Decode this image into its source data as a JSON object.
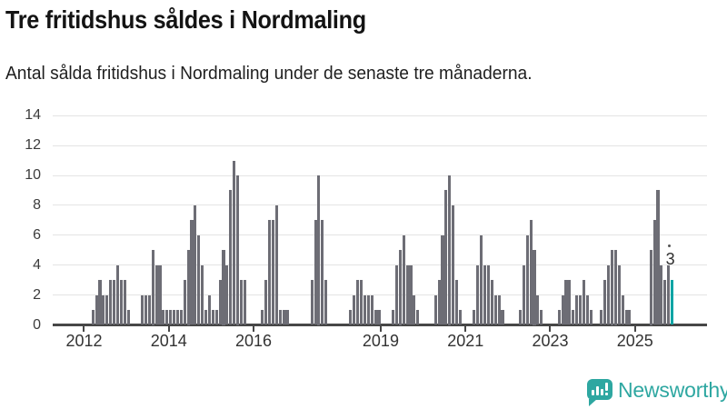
{
  "branding": {
    "name": "Newsworthy",
    "logo_icon": "bar-chart-speech-bubble",
    "color": "#2ea7a1"
  },
  "colors": {
    "bar": "#6d6d75",
    "highlight": "#00a4a4",
    "grid": "#e4e4e4",
    "axis_line": "#474747",
    "axis_text": "#3c3c3c",
    "title_text": "#141414"
  },
  "chart_data": {
    "type": "bar",
    "title": "Tre fritidshus såldes i Nordmaling",
    "subtitle": "Antal sålda fritidshus i Nordmaling under de senaste tre månaderna.",
    "xlabel": "",
    "ylabel": "",
    "ylim": [
      0,
      14
    ],
    "y_ticks": [
      0,
      2,
      4,
      6,
      8,
      10,
      12,
      14
    ],
    "x_tick_years": [
      2012,
      2014,
      2016,
      2019,
      2021,
      2023,
      2025
    ],
    "x_domain_start": "2011-04",
    "x_domain_end": "2026-08",
    "grid": true,
    "legend": "none",
    "unit": "antal sålda fritidshus per 3-månadersperiod",
    "series": [
      [
        "2012-03",
        1
      ],
      [
        "2012-04",
        2
      ],
      [
        "2012-05",
        3
      ],
      [
        "2012-06",
        2
      ],
      [
        "2012-07",
        2
      ],
      [
        "2012-08",
        3
      ],
      [
        "2012-09",
        3
      ],
      [
        "2012-10",
        4
      ],
      [
        "2012-11",
        3
      ],
      [
        "2012-12",
        3
      ],
      [
        "2013-01",
        1
      ],
      [
        "2013-05",
        2
      ],
      [
        "2013-06",
        2
      ],
      [
        "2013-07",
        2
      ],
      [
        "2013-08",
        5
      ],
      [
        "2013-09",
        4
      ],
      [
        "2013-10",
        4
      ],
      [
        "2013-11",
        1
      ],
      [
        "2013-12",
        1
      ],
      [
        "2014-01",
        1
      ],
      [
        "2014-02",
        1
      ],
      [
        "2014-03",
        1
      ],
      [
        "2014-04",
        1
      ],
      [
        "2014-05",
        3
      ],
      [
        "2014-06",
        5
      ],
      [
        "2014-07",
        7
      ],
      [
        "2014-08",
        8
      ],
      [
        "2014-09",
        6
      ],
      [
        "2014-10",
        4
      ],
      [
        "2014-11",
        1
      ],
      [
        "2014-12",
        2
      ],
      [
        "2015-01",
        1
      ],
      [
        "2015-02",
        1
      ],
      [
        "2015-03",
        3
      ],
      [
        "2015-04",
        5
      ],
      [
        "2015-05",
        4
      ],
      [
        "2015-06",
        9
      ],
      [
        "2015-07",
        11
      ],
      [
        "2015-08",
        10
      ],
      [
        "2015-09",
        3
      ],
      [
        "2015-10",
        3
      ],
      [
        "2016-03",
        1
      ],
      [
        "2016-04",
        3
      ],
      [
        "2016-05",
        7
      ],
      [
        "2016-06",
        7
      ],
      [
        "2016-07",
        8
      ],
      [
        "2016-08",
        1
      ],
      [
        "2016-09",
        1
      ],
      [
        "2016-10",
        1
      ],
      [
        "2017-05",
        3
      ],
      [
        "2017-06",
        7
      ],
      [
        "2017-07",
        10
      ],
      [
        "2017-08",
        7
      ],
      [
        "2017-09",
        3
      ],
      [
        "2018-04",
        1
      ],
      [
        "2018-05",
        2
      ],
      [
        "2018-06",
        3
      ],
      [
        "2018-07",
        3
      ],
      [
        "2018-08",
        2
      ],
      [
        "2018-09",
        2
      ],
      [
        "2018-10",
        2
      ],
      [
        "2018-11",
        1
      ],
      [
        "2018-12",
        1
      ],
      [
        "2019-04",
        1
      ],
      [
        "2019-05",
        4
      ],
      [
        "2019-06",
        5
      ],
      [
        "2019-07",
        6
      ],
      [
        "2019-08",
        4
      ],
      [
        "2019-09",
        4
      ],
      [
        "2019-10",
        2
      ],
      [
        "2019-11",
        1
      ],
      [
        "2020-04",
        2
      ],
      [
        "2020-05",
        3
      ],
      [
        "2020-06",
        6
      ],
      [
        "2020-07",
        9
      ],
      [
        "2020-08",
        10
      ],
      [
        "2020-09",
        8
      ],
      [
        "2020-10",
        3
      ],
      [
        "2020-11",
        1
      ],
      [
        "2021-03",
        1
      ],
      [
        "2021-04",
        4
      ],
      [
        "2021-05",
        6
      ],
      [
        "2021-06",
        4
      ],
      [
        "2021-07",
        4
      ],
      [
        "2021-08",
        3
      ],
      [
        "2021-09",
        2
      ],
      [
        "2021-10",
        2
      ],
      [
        "2021-11",
        1
      ],
      [
        "2022-04",
        1
      ],
      [
        "2022-05",
        4
      ],
      [
        "2022-06",
        6
      ],
      [
        "2022-07",
        7
      ],
      [
        "2022-08",
        5
      ],
      [
        "2022-09",
        2
      ],
      [
        "2022-10",
        1
      ],
      [
        "2023-03",
        1
      ],
      [
        "2023-04",
        2
      ],
      [
        "2023-05",
        3
      ],
      [
        "2023-06",
        3
      ],
      [
        "2023-07",
        1
      ],
      [
        "2023-08",
        2
      ],
      [
        "2023-09",
        2
      ],
      [
        "2023-10",
        3
      ],
      [
        "2023-11",
        2
      ],
      [
        "2023-12",
        1
      ],
      [
        "2024-03",
        1
      ],
      [
        "2024-04",
        3
      ],
      [
        "2024-05",
        4
      ],
      [
        "2024-06",
        5
      ],
      [
        "2024-07",
        5
      ],
      [
        "2024-08",
        4
      ],
      [
        "2024-09",
        2
      ],
      [
        "2024-10",
        1
      ],
      [
        "2024-11",
        1
      ],
      [
        "2025-05",
        5
      ],
      [
        "2025-06",
        7
      ],
      [
        "2025-07",
        9
      ],
      [
        "2025-08",
        4
      ],
      [
        "2025-09",
        3
      ],
      [
        "2025-10",
        4
      ],
      [
        "2025-11",
        3
      ]
    ],
    "highlight": {
      "month": "2025-11",
      "value": 3,
      "label": "3"
    }
  }
}
